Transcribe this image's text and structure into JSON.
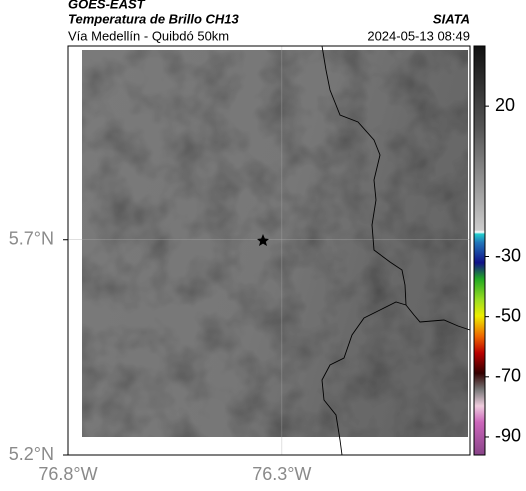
{
  "header": {
    "source": "GOES-EAST",
    "title": "Temperatura de Brillo CH13",
    "subtitle": "Vía Medellín - Quibdó 50km",
    "agency": "SIATA",
    "datetime": "2024-05-13 08:49"
  },
  "map": {
    "xlim": [
      -76.8,
      -75.86
    ],
    "ylim": [
      5.2,
      6.15
    ],
    "xticks": [
      {
        "value": -76.8,
        "label": "76.8°W"
      },
      {
        "value": -76.3,
        "label": "76.3°W"
      }
    ],
    "yticks": [
      {
        "value": 5.7,
        "label": "5.7°N"
      },
      {
        "value": 5.2,
        "label": "5.2°N"
      }
    ]
  },
  "colorbar": {
    "lim": [
      -96,
      40
    ],
    "ticks": [
      20,
      -30,
      -50,
      -70,
      -90
    ]
  }
}
